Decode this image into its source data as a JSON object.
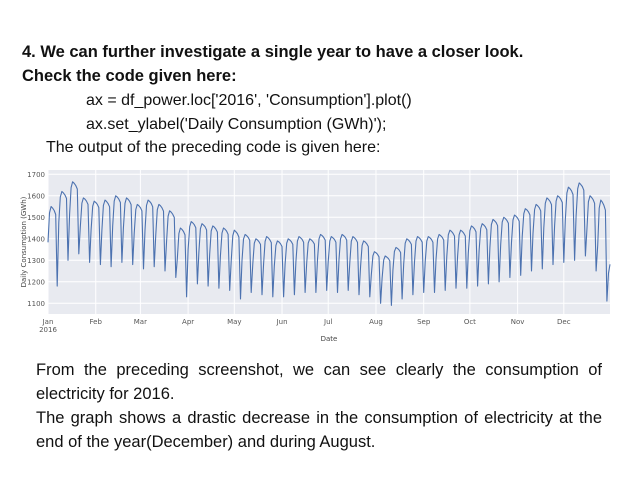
{
  "heading": {
    "line1": "4. We can further investigate a single year to have a closer look.",
    "line2": "Check the code given here:"
  },
  "code": {
    "line1": "ax = df_power.loc['2016', 'Consumption'].plot()",
    "line2": "ax.set_ylabel('Daily Consumption (GWh)');"
  },
  "intro": "The output of the preceding code is given here:",
  "chart_data": {
    "type": "line",
    "xlabel": "Date",
    "ylabel": "Daily Consumption (GWh)",
    "ylim": [
      1050,
      1720
    ],
    "yticks": [
      "1100",
      "1200",
      "1300",
      "1400",
      "1500",
      "1600",
      "1700"
    ],
    "xticks": [
      "Jan\n2016",
      "Feb",
      "Mar",
      "Apr",
      "May",
      "Jun",
      "Jul",
      "Aug",
      "Sep",
      "Oct",
      "Nov",
      "Dec"
    ],
    "grid": true,
    "background": "#e8eaf0",
    "line_color": "#4c72b0",
    "series": [
      {
        "x_start": "2016-01-01",
        "x_end": "2016-12-31",
        "weekly": [
          {
            "week": 1,
            "weekday_peak": 1550,
            "weekend_low": 1180
          },
          {
            "week": 2,
            "weekday_peak": 1620,
            "weekend_low": 1300
          },
          {
            "week": 3,
            "weekday_peak": 1665,
            "weekend_low": 1330
          },
          {
            "week": 4,
            "weekday_peak": 1590,
            "weekend_low": 1290
          },
          {
            "week": 5,
            "weekday_peak": 1575,
            "weekend_low": 1280
          },
          {
            "week": 6,
            "weekday_peak": 1580,
            "weekend_low": 1270
          },
          {
            "week": 7,
            "weekday_peak": 1600,
            "weekend_low": 1290
          },
          {
            "week": 8,
            "weekday_peak": 1590,
            "weekend_low": 1280
          },
          {
            "week": 9,
            "weekday_peak": 1560,
            "weekend_low": 1260
          },
          {
            "week": 10,
            "weekday_peak": 1580,
            "weekend_low": 1270
          },
          {
            "week": 11,
            "weekday_peak": 1560,
            "weekend_low": 1250
          },
          {
            "week": 12,
            "weekday_peak": 1530,
            "weekend_low": 1220
          },
          {
            "week": 13,
            "weekday_peak": 1450,
            "weekend_low": 1130
          },
          {
            "week": 14,
            "weekday_peak": 1480,
            "weekend_low": 1190
          },
          {
            "week": 15,
            "weekday_peak": 1470,
            "weekend_low": 1180
          },
          {
            "week": 16,
            "weekday_peak": 1460,
            "weekend_low": 1170
          },
          {
            "week": 17,
            "weekday_peak": 1450,
            "weekend_low": 1160
          },
          {
            "week": 18,
            "weekday_peak": 1440,
            "weekend_low": 1120
          },
          {
            "week": 19,
            "weekday_peak": 1420,
            "weekend_low": 1150
          },
          {
            "week": 20,
            "weekday_peak": 1400,
            "weekend_low": 1140
          },
          {
            "week": 21,
            "weekday_peak": 1410,
            "weekend_low": 1130
          },
          {
            "week": 22,
            "weekday_peak": 1390,
            "weekend_low": 1130
          },
          {
            "week": 23,
            "weekday_peak": 1400,
            "weekend_low": 1140
          },
          {
            "week": 24,
            "weekday_peak": 1410,
            "weekend_low": 1150
          },
          {
            "week": 25,
            "weekday_peak": 1400,
            "weekend_low": 1150
          },
          {
            "week": 26,
            "weekday_peak": 1420,
            "weekend_low": 1160
          },
          {
            "week": 27,
            "weekday_peak": 1410,
            "weekend_low": 1150
          },
          {
            "week": 28,
            "weekday_peak": 1420,
            "weekend_low": 1160
          },
          {
            "week": 29,
            "weekday_peak": 1410,
            "weekend_low": 1140
          },
          {
            "week": 30,
            "weekday_peak": 1390,
            "weekend_low": 1130
          },
          {
            "week": 31,
            "weekday_peak": 1340,
            "weekend_low": 1100
          },
          {
            "week": 32,
            "weekday_peak": 1320,
            "weekend_low": 1090
          },
          {
            "week": 33,
            "weekday_peak": 1360,
            "weekend_low": 1120
          },
          {
            "week": 34,
            "weekday_peak": 1400,
            "weekend_low": 1140
          },
          {
            "week": 35,
            "weekday_peak": 1410,
            "weekend_low": 1150
          },
          {
            "week": 36,
            "weekday_peak": 1410,
            "weekend_low": 1150
          },
          {
            "week": 37,
            "weekday_peak": 1420,
            "weekend_low": 1160
          },
          {
            "week": 38,
            "weekday_peak": 1440,
            "weekend_low": 1170
          },
          {
            "week": 39,
            "weekday_peak": 1440,
            "weekend_low": 1170
          },
          {
            "week": 40,
            "weekday_peak": 1460,
            "weekend_low": 1180
          },
          {
            "week": 41,
            "weekday_peak": 1470,
            "weekend_low": 1190
          },
          {
            "week": 42,
            "weekday_peak": 1490,
            "weekend_low": 1200
          },
          {
            "week": 43,
            "weekday_peak": 1500,
            "weekend_low": 1220
          },
          {
            "week": 44,
            "weekday_peak": 1510,
            "weekend_low": 1230
          },
          {
            "week": 45,
            "weekday_peak": 1540,
            "weekend_low": 1250
          },
          {
            "week": 46,
            "weekday_peak": 1560,
            "weekend_low": 1260
          },
          {
            "week": 47,
            "weekday_peak": 1590,
            "weekend_low": 1280
          },
          {
            "week": 48,
            "weekday_peak": 1600,
            "weekend_low": 1290
          },
          {
            "week": 49,
            "weekday_peak": 1640,
            "weekend_low": 1300
          },
          {
            "week": 50,
            "weekday_peak": 1660,
            "weekend_low": 1320
          },
          {
            "week": 51,
            "weekday_peak": 1600,
            "weekend_low": 1250
          },
          {
            "week": 52,
            "weekday_peak": 1580,
            "weekend_low": 1110
          },
          {
            "week": 53,
            "weekday_peak": 1290,
            "weekend_low": 1180
          }
        ]
      }
    ]
  },
  "body": {
    "para1": "From the preceding screenshot, we can see clearly the consumption of electricity for 2016.",
    "para2": "The graph shows a drastic decrease in the consumption of electricity at the end of the year(December) and during August."
  }
}
